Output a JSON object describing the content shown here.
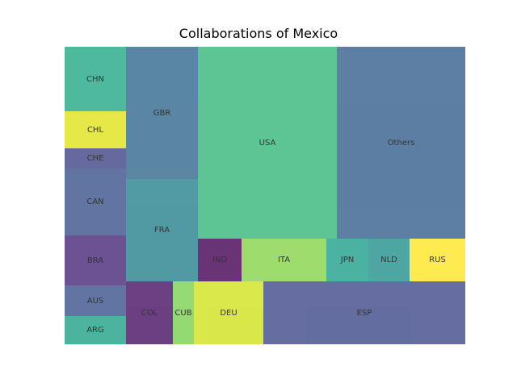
{
  "chart_data": {
    "type": "treemap",
    "title": "Collaborations of Mexico",
    "cells": [
      {
        "label": "CHN",
        "color": "#22a884"
      },
      {
        "label": "CHL",
        "color": "#dfe318"
      },
      {
        "label": "CHE",
        "color": "#414487"
      },
      {
        "label": "CAN",
        "color": "#3b528b"
      },
      {
        "label": "BRA",
        "color": "#482878"
      },
      {
        "label": "AUS",
        "color": "#3b528b"
      },
      {
        "label": "ARG",
        "color": "#1fa187"
      },
      {
        "label": "GBR",
        "color": "#31688e"
      },
      {
        "label": "FRA",
        "color": "#26828e"
      },
      {
        "label": "USA",
        "color": "#35b779"
      },
      {
        "label": "Others",
        "color": "#355f8d"
      },
      {
        "label": "IND",
        "color": "#440154"
      },
      {
        "label": "ITA",
        "color": "#86d549"
      },
      {
        "label": "JPN",
        "color": "#1f9e89"
      },
      {
        "label": "NLD",
        "color": "#21918c"
      },
      {
        "label": "RUS",
        "color": "#fde725"
      },
      {
        "label": "COL",
        "color": "#471063"
      },
      {
        "label": "CUB",
        "color": "#7ad151"
      },
      {
        "label": "DEU",
        "color": "#d2e21b"
      },
      {
        "label": "ESP",
        "color": "#3e4989"
      }
    ]
  }
}
